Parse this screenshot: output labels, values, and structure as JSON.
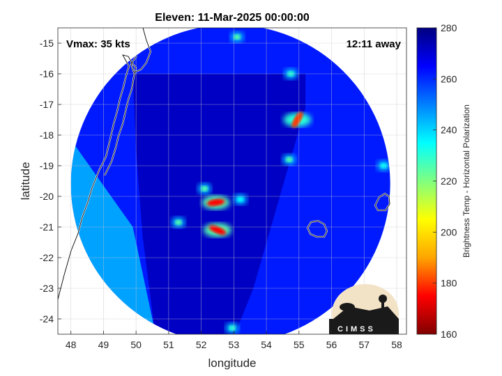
{
  "chart_data": {
    "type": "heatmap",
    "title": "Eleven: 11-Mar-2025 00:00:00",
    "xlabel": "longitude",
    "ylabel": "latitude",
    "xlim": [
      47.6,
      58.3
    ],
    "ylim": [
      -24.5,
      -14.5
    ],
    "x_ticks": [
      "48",
      "49",
      "50",
      "51",
      "52",
      "53",
      "54",
      "55",
      "56",
      "57",
      "58"
    ],
    "y_ticks": [
      "-15",
      "-16",
      "-17",
      "-18",
      "-19",
      "-20",
      "-21",
      "-22",
      "-23",
      "-24"
    ],
    "grid": true,
    "annotations": {
      "vmax": "Vmax: 35 kts",
      "distance": "12:11 away"
    },
    "colorbar": {
      "label": "Brightness Temp - Horizontal Polarization",
      "min": 160,
      "max": 280,
      "ticks": [
        "160",
        "180",
        "200",
        "220",
        "240",
        "260",
        "280"
      ],
      "colormap": [
        "#800000",
        "#ff0000",
        "#ffa500",
        "#ffff00",
        "#80ff80",
        "#00ffff",
        "#0080ff",
        "#0000ff",
        "#000080"
      ]
    },
    "swath": {
      "center_lon": 52.9,
      "center_lat": -19.6,
      "radius_deg": 4.9
    },
    "background_temp": 262,
    "core_temp": 272,
    "cold_features": [
      {
        "lon": 52.45,
        "lat": -20.2,
        "temp": 175
      },
      {
        "lon": 52.5,
        "lat": -21.1,
        "temp": 175
      },
      {
        "lon": 54.95,
        "lat": -17.5,
        "temp": 180
      },
      {
        "lon": 51.3,
        "lat": -20.85,
        "temp": 225
      },
      {
        "lon": 53.2,
        "lat": -20.1,
        "temp": 235
      },
      {
        "lon": 52.1,
        "lat": -19.75,
        "temp": 225
      },
      {
        "lon": 53.1,
        "lat": -14.8,
        "temp": 225
      },
      {
        "lon": 54.7,
        "lat": -18.8,
        "temp": 225
      },
      {
        "lon": 54.75,
        "lat": -16.0,
        "temp": 230
      },
      {
        "lon": 57.6,
        "lat": -19.0,
        "temp": 235
      },
      {
        "lon": 52.95,
        "lat": -24.3,
        "temp": 230
      }
    ],
    "logo_text": "CIMSS"
  }
}
